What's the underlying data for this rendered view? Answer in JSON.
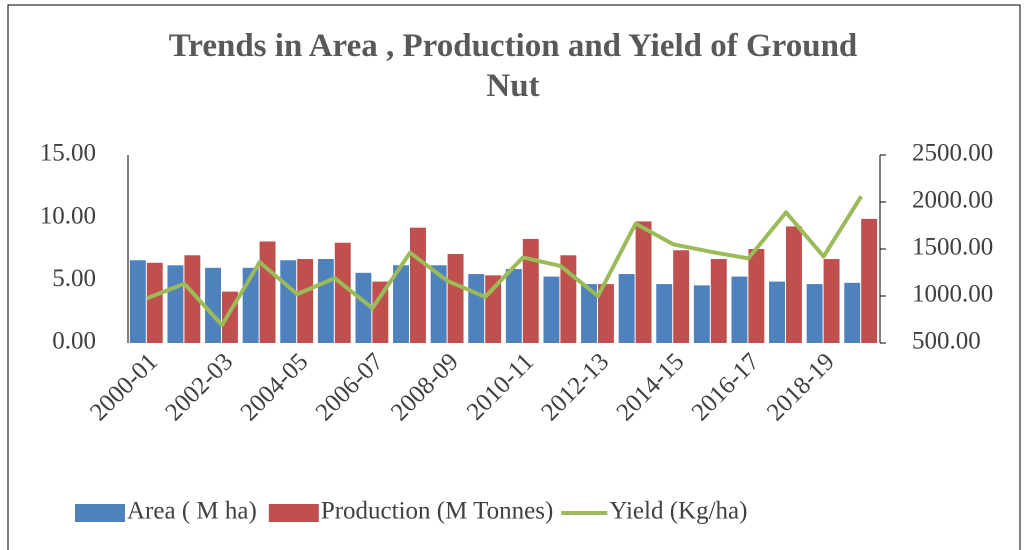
{
  "chart_data": {
    "type": "bar_line",
    "title": "Trends in Area , Production and Yield of Ground Nut",
    "categories": [
      "2000-01",
      null,
      "2002-03",
      null,
      "2004-05",
      null,
      "2006-07",
      null,
      "2008-09",
      null,
      "2010-11",
      null,
      "2012-13",
      null,
      "2014-15",
      null,
      "2016-17",
      null,
      "2018-19",
      null
    ],
    "series": [
      {
        "name": "Area ( M ha)",
        "color": "#4f81bd",
        "type": "bar",
        "values": [
          6.6,
          6.2,
          6.0,
          6.0,
          6.6,
          6.7,
          5.6,
          6.2,
          6.2,
          5.5,
          5.9,
          5.3,
          4.7,
          5.5,
          4.7,
          4.6,
          5.3,
          4.9,
          4.7,
          4.8
        ]
      },
      {
        "name": "Production (M Tonnes)",
        "color": "#c0504d",
        "type": "bar",
        "values": [
          6.4,
          7.0,
          4.1,
          8.1,
          6.7,
          8.0,
          4.9,
          9.2,
          7.1,
          5.4,
          8.3,
          7.0,
          4.7,
          9.7,
          7.4,
          6.7,
          7.5,
          9.3,
          6.7,
          9.9
        ]
      },
      {
        "name": "Yield (Kg/ha)",
        "color": "#9bbb59",
        "type": "line",
        "axis": "y2",
        "values": [
          975,
          1130,
          690,
          1360,
          1020,
          1190,
          870,
          1460,
          1160,
          990,
          1410,
          1320,
          1000,
          1770,
          1550,
          1470,
          1400,
          1890,
          1420,
          2060
        ]
      }
    ],
    "ylim": [
      0,
      15
    ],
    "yticks": [
      {
        "value": 0,
        "label": "0.00"
      },
      {
        "value": 5,
        "label": "5.00"
      },
      {
        "value": 10,
        "label": "10.00"
      },
      {
        "value": 15,
        "label": "15.00"
      }
    ],
    "y2lim": [
      500,
      2500
    ],
    "y2ticks": [
      {
        "value": 500,
        "label": "500.00"
      },
      {
        "value": 1000,
        "label": "1000.00"
      },
      {
        "value": 1500,
        "label": "1500.00"
      },
      {
        "value": 2000,
        "label": "2000.00"
      },
      {
        "value": 2500,
        "label": "2500.00"
      }
    ],
    "legend": "bottom"
  }
}
